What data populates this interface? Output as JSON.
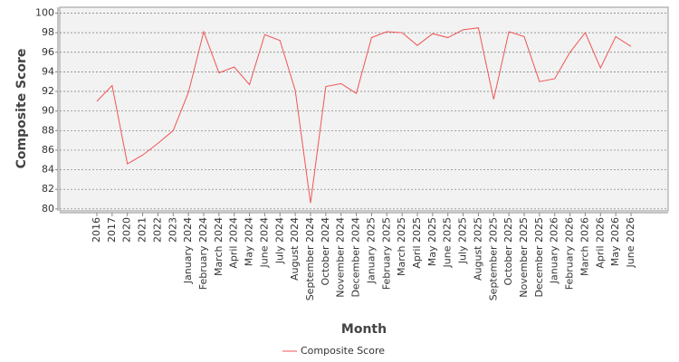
{
  "chart_data": {
    "type": "line",
    "x_label": "Month",
    "y_label": "Composite Score",
    "categories": [
      "2016",
      "2017",
      "2020",
      "2021",
      "2022",
      "2023",
      "January 2024",
      "February 2024",
      "March 2024",
      "April 2024",
      "May 2024",
      "June 2024",
      "July 2024",
      "August 2024",
      "September 2024",
      "October 2024",
      "November 2024",
      "December 2024",
      "January 2025",
      "February 2025",
      "March 2025",
      "April 2025",
      "May 2025",
      "June 2025",
      "July 2025",
      "August 2025",
      "September 2025",
      "October 2025",
      "November 2025",
      "December 2025",
      "January 2026",
      "February 2026",
      "March 2026",
      "April 2026",
      "May 2026",
      "June 2026"
    ],
    "series": [
      {
        "name": "Composite Score",
        "color": "#f05555",
        "values": [
          91.0,
          92.6,
          84.6,
          85.5,
          86.7,
          88.0,
          91.9,
          98.1,
          93.9,
          94.5,
          92.7,
          97.8,
          97.2,
          92.1,
          80.6,
          92.5,
          92.8,
          91.8,
          97.5,
          98.1,
          98.0,
          96.7,
          97.9,
          97.5,
          98.3,
          98.5,
          91.2,
          98.1,
          97.6,
          93.0,
          93.3,
          96.0,
          98.0,
          94.4,
          97.6,
          96.6
        ]
      }
    ],
    "ylim": [
      79.8,
      100.6
    ],
    "yticks": [
      80,
      82,
      84,
      86,
      88,
      90,
      92,
      94,
      96,
      98,
      100
    ],
    "grid": true,
    "legend": "bottom"
  }
}
